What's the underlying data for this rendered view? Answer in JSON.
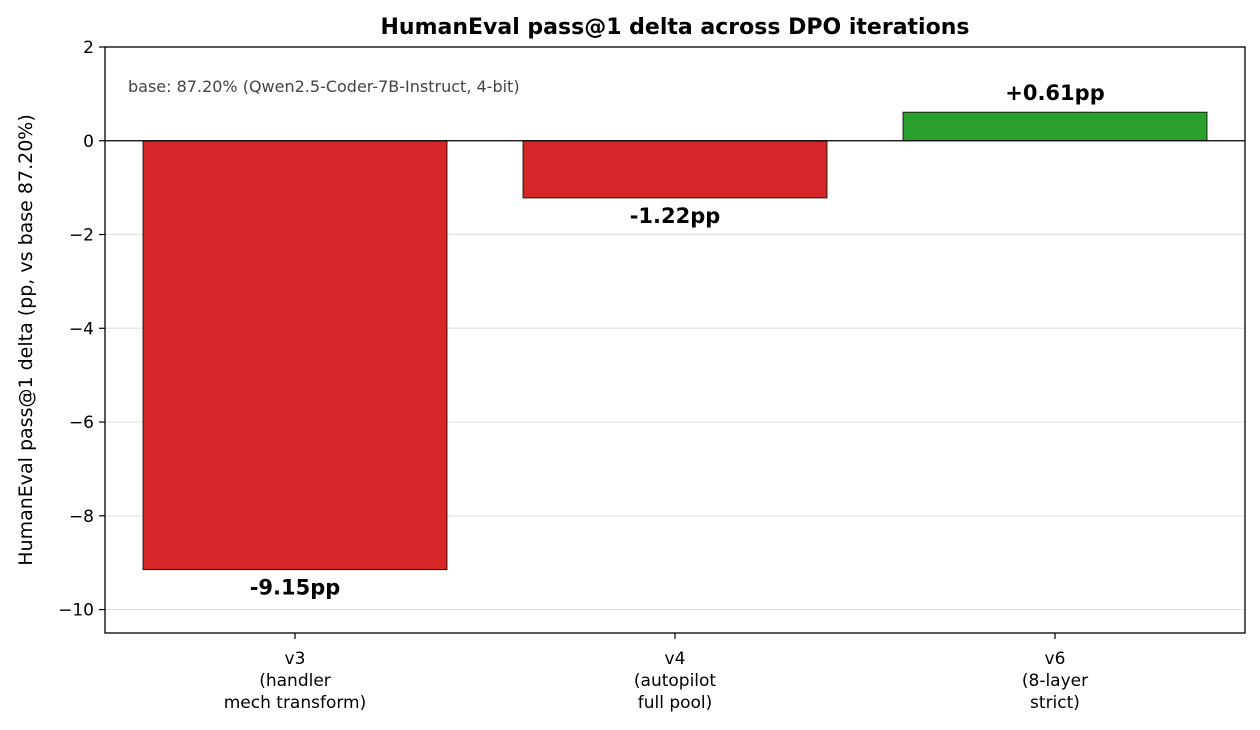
{
  "chart_data": {
    "type": "bar",
    "title": "HumanEval pass@1 delta across DPO iterations",
    "xlabel": "",
    "ylabel": "HumanEval pass@1 delta (pp, vs base 87.20%)",
    "ylim": [
      -10.5,
      2
    ],
    "yticks": [
      2,
      0,
      -2,
      -4,
      -6,
      -8,
      -10
    ],
    "ytick_labels": [
      "2",
      "0",
      "−2",
      "−4",
      "−6",
      "−8",
      "−10"
    ],
    "grid": "y",
    "categories": [
      [
        "v3",
        "(handler",
        "mech transform)"
      ],
      [
        "v4",
        "(autopilot",
        "full pool)"
      ],
      [
        "v6",
        "(8-layer",
        "strict)"
      ]
    ],
    "values": [
      -9.15,
      -1.22,
      0.61
    ],
    "value_labels": [
      "-9.15pp",
      "-1.22pp",
      "+0.61pp"
    ],
    "colors": [
      "#d62728",
      "#d62728",
      "#2ca02c"
    ],
    "annotation": "base: 87.20%  (Qwen2.5-Coder-7B-Instruct, 4-bit)"
  }
}
